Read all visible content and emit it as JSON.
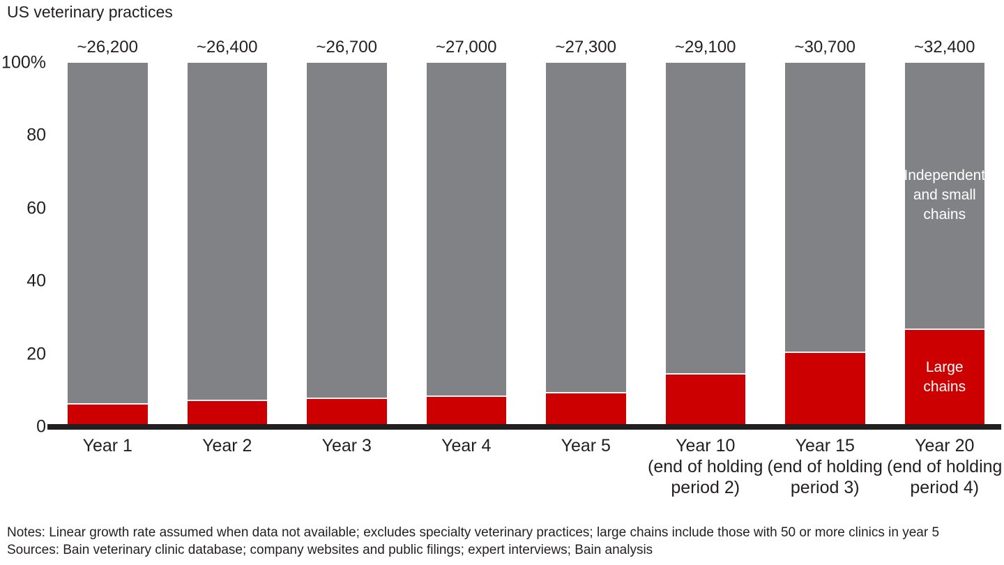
{
  "chart_data": {
    "type": "bar",
    "stacked": true,
    "title": "US veterinary practices",
    "categories": [
      [
        "Year 1"
      ],
      [
        "Year 2"
      ],
      [
        "Year 3"
      ],
      [
        "Year 4"
      ],
      [
        "Year 5"
      ],
      [
        "Year 10",
        "(end of holding",
        "period 2)"
      ],
      [
        "Year 15",
        "(end of holding",
        "period 3)"
      ],
      [
        "Year 20",
        "(end of holding",
        "period 4)"
      ]
    ],
    "totals": [
      "~26,200",
      "~26,400",
      "~26,700",
      "~27,000",
      "~27,300",
      "~29,100",
      "~30,700",
      "~32,400"
    ],
    "series": [
      {
        "name": "Independent and small chains",
        "color": "#808285",
        "values": [
          94,
          93,
          92.5,
          92,
          91,
          85.7,
          79.7,
          73.4
        ],
        "in_bar_label_lines": [
          "Independent",
          "and small",
          "chains"
        ],
        "label_color": "#ffffff"
      },
      {
        "name": "Large chains",
        "color": "#CC0000",
        "values": [
          6,
          7,
          7.5,
          8,
          9,
          14.3,
          20.3,
          26.6
        ],
        "in_bar_label_lines": [
          "Large",
          "chains"
        ],
        "label_color": "#ffffff"
      }
    ],
    "y_ticks": [
      "100%",
      "80",
      "60",
      "40",
      "20",
      "0"
    ],
    "ylim": [
      0,
      100
    ],
    "unit": "%",
    "grid": false,
    "legend_position": "inside-last-bar",
    "axis_color": "#231F20"
  },
  "notes": "Notes: Linear growth rate assumed when data not available; excludes specialty veterinary practices; large chains include those with 50 or more clinics in year 5",
  "sources": "Sources: Bain veterinary clinic database; company websites and public filings; expert interviews; Bain analysis"
}
